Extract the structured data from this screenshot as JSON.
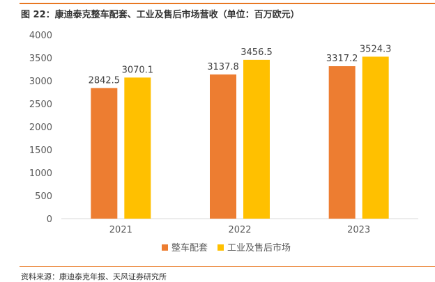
{
  "title": "图 22：康迪泰克整车配套、工业及售后市场营收（单位：百万欧元）",
  "source": "资料来源：康迪泰克年报、天风证券研究所",
  "colors": {
    "accent_line": "#E87722",
    "series_1": "#ED7D31",
    "series_2": "#FFC000"
  },
  "chart_data": {
    "type": "bar",
    "categories": [
      "2021",
      "2022",
      "2023"
    ],
    "series": [
      {
        "name": "整车配套",
        "values": [
          2842.5,
          3137.8,
          3317.2
        ]
      },
      {
        "name": "工业及售后市场",
        "values": [
          3070.1,
          3456.5,
          3524.3
        ]
      }
    ],
    "ylim": [
      0,
      4000
    ],
    "yticks": [
      0,
      500,
      1000,
      1500,
      2000,
      2500,
      3000,
      3500,
      4000
    ],
    "grid": false,
    "legend": "bottom-center"
  }
}
